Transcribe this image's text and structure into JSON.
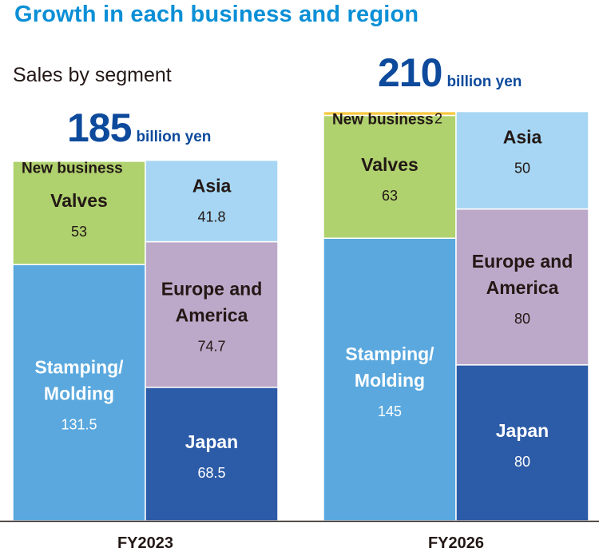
{
  "page": {
    "title": "Growth in each business and region",
    "subtitle": "Sales by segment"
  },
  "chart_data": {
    "type": "bar",
    "subtype": "paired stacked bars (by business segment and by region)",
    "unit": "billion yen",
    "colors": {
      "new_business": "#f7c843",
      "valves": "#afd16e",
      "stamping_molding": "#5aa8de",
      "asia": "#a6d6f3",
      "europe_america": "#bca9c9",
      "japan": "#2c5ba7",
      "total_text": "#0d4a9c",
      "title_text": "#0a8fd6"
    },
    "groups": [
      {
        "year": "FY2023",
        "total": "185",
        "total_unit": "billion yen",
        "by_segment": [
          {
            "key": "stamping",
            "label": [
              "Stamping/",
              "Molding"
            ],
            "value": 131.5,
            "display": "131.5",
            "color": "#5aa8de",
            "text_color": "#ffffff"
          },
          {
            "key": "valves",
            "label": [
              "Valves"
            ],
            "value": 53,
            "display": "53",
            "color": "#afd16e",
            "text_color": "#231815"
          },
          {
            "key": "newbiz",
            "label": [
              "New business"
            ],
            "value": 0.5,
            "display": "",
            "color": "#f7c843",
            "text_color": "#231815"
          }
        ],
        "by_region": [
          {
            "key": "japan",
            "label": [
              "Japan"
            ],
            "value": 68.5,
            "display": "68.5",
            "color": "#2c5ba7",
            "text_color": "#ffffff"
          },
          {
            "key": "europe",
            "label": [
              "Europe and",
              "America"
            ],
            "value": 74.7,
            "display": "74.7",
            "color": "#bca9c9",
            "text_color": "#231815"
          },
          {
            "key": "asia",
            "label": [
              "Asia"
            ],
            "value": 41.8,
            "display": "41.8",
            "color": "#a6d6f3",
            "text_color": "#231815"
          }
        ]
      },
      {
        "year": "FY2026",
        "total": "210",
        "total_unit": "billion yen",
        "by_segment": [
          {
            "key": "stamping",
            "label": [
              "Stamping/",
              "Molding"
            ],
            "value": 145,
            "display": "145",
            "color": "#5aa8de",
            "text_color": "#ffffff"
          },
          {
            "key": "valves",
            "label": [
              "Valves"
            ],
            "value": 63,
            "display": "63",
            "color": "#afd16e",
            "text_color": "#231815"
          },
          {
            "key": "newbiz",
            "label": [
              "New business"
            ],
            "value": 2,
            "display": "2",
            "color": "#f7c843",
            "text_color": "#231815"
          }
        ],
        "by_region": [
          {
            "key": "japan",
            "label": [
              "Japan"
            ],
            "value": 80,
            "display": "80",
            "color": "#2c5ba7",
            "text_color": "#ffffff"
          },
          {
            "key": "europe",
            "label": [
              "Europe and",
              "America"
            ],
            "value": 80,
            "display": "80",
            "color": "#bca9c9",
            "text_color": "#231815"
          },
          {
            "key": "asia",
            "label": [
              "Asia"
            ],
            "value": 50,
            "display": "50",
            "color": "#a6d6f3",
            "text_color": "#231815"
          }
        ]
      }
    ]
  }
}
